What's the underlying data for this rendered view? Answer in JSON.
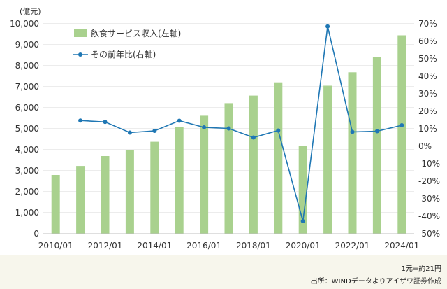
{
  "chart_data": {
    "type": "bar",
    "title": "",
    "y_unit_label": "(億元)",
    "categories": [
      "2010",
      "2011",
      "2012",
      "2013",
      "2014",
      "2015",
      "2016",
      "2017",
      "2018",
      "2019",
      "2020",
      "2021",
      "2022",
      "2023",
      "2024"
    ],
    "x_tick_labels": [
      "2010/01",
      "2012/01",
      "2014/01",
      "2016/01",
      "2018/01",
      "2020/01",
      "2022/01",
      "2024/01"
    ],
    "x_tick_positions": [
      "2010",
      "2012",
      "2014",
      "2016",
      "2018",
      "2020",
      "2022",
      "2024"
    ],
    "ylim": [
      0,
      10000
    ],
    "y_ticks": [
      "0",
      "1,000",
      "2,000",
      "3,000",
      "4,000",
      "5,000",
      "6,000",
      "7,000",
      "8,000",
      "9,000",
      "10,000"
    ],
    "y2lim": [
      -50,
      70
    ],
    "y2_ticks": [
      "-50%",
      "-40%",
      "-30%",
      "-20%",
      "-10%",
      "0%",
      "10%",
      "20%",
      "30%",
      "40%",
      "50%",
      "60%",
      "70%"
    ],
    "grid": true,
    "legend_position": "top-left",
    "series": [
      {
        "name": "飲食サービス収入(左軸)",
        "type": "bar",
        "axis": "left",
        "color": "#a9d18e",
        "values": [
          2800,
          3230,
          3700,
          4000,
          4380,
          5070,
          5620,
          6220,
          6580,
          7210,
          4170,
          7050,
          7690,
          8400,
          9450
        ]
      },
      {
        "name": "その前年比(右軸)",
        "type": "line",
        "axis": "right",
        "color": "#1f77b4",
        "values": [
          null,
          14.7,
          13.9,
          7.8,
          8.8,
          14.6,
          10.8,
          10.2,
          5.0,
          9.0,
          -42.8,
          68.5,
          8.2,
          8.6,
          12.0
        ]
      }
    ]
  },
  "footer": {
    "rate_note": "1元=約21円",
    "source_note": "出所：WINDデータよりアイザワ証券作成"
  }
}
